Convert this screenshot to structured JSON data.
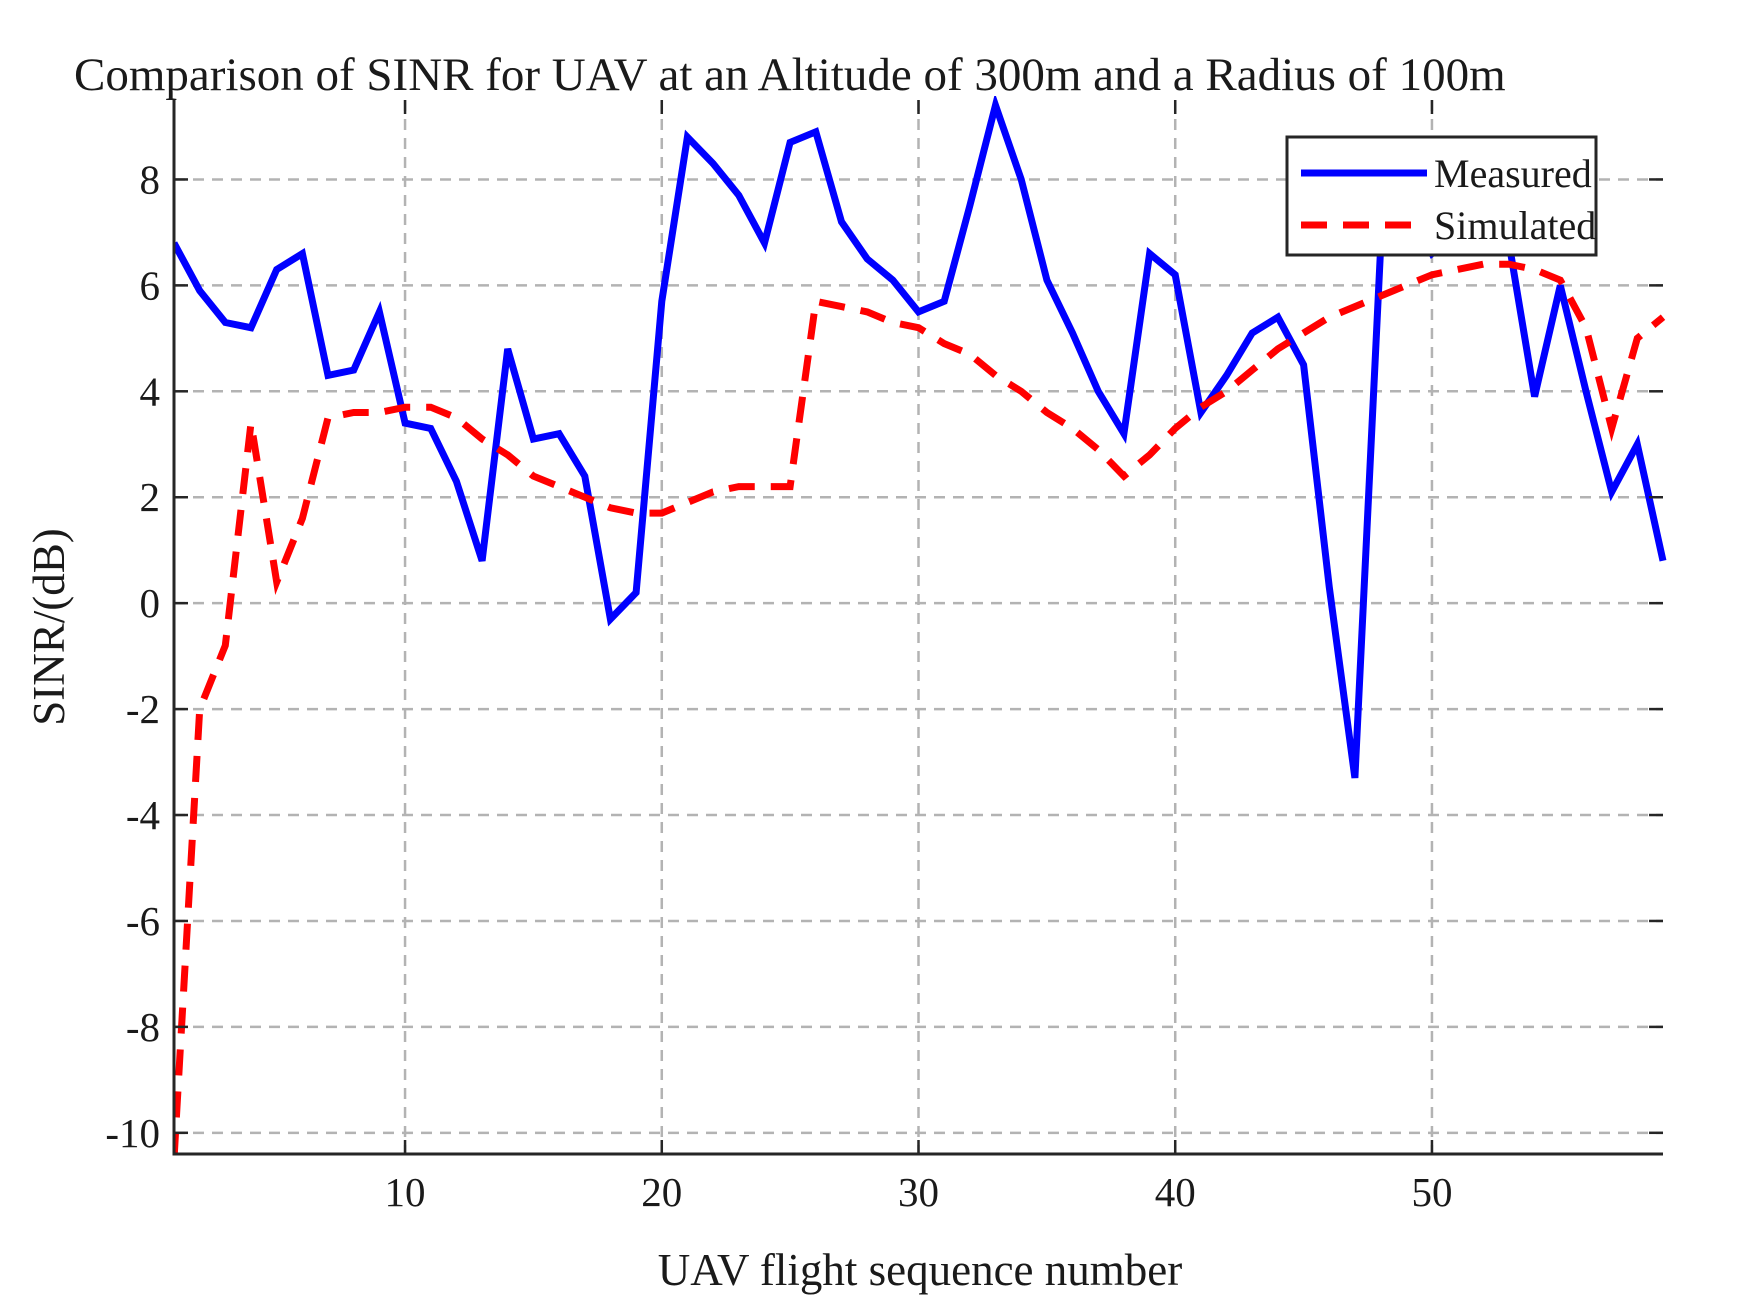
{
  "chart_data": {
    "type": "line",
    "title": "Comparison of SINR for UAV at an Altitude of 300m and a Radius of 100m",
    "xlabel": "UAV flight sequence number",
    "ylabel": "SINR/(dB)",
    "xlim": [
      1,
      59
    ],
    "ylim": [
      -10.4,
      9.5
    ],
    "xticks": [
      10,
      20,
      30,
      40,
      50
    ],
    "yticks": [
      -10,
      -8,
      -6,
      -4,
      -2,
      0,
      2,
      4,
      6,
      8
    ],
    "grid": true,
    "legend": {
      "placement": "top-right"
    },
    "series": [
      {
        "name": "Measured",
        "color": "#0000ff",
        "style": "solid",
        "x": [
          1,
          2,
          3,
          4,
          5,
          6,
          7,
          8,
          9,
          10,
          11,
          12,
          13,
          14,
          15,
          16,
          17,
          18,
          19,
          20,
          21,
          22,
          23,
          24,
          25,
          26,
          27,
          28,
          29,
          30,
          31,
          32,
          33,
          34,
          35,
          36,
          37,
          38,
          39,
          40,
          41,
          42,
          43,
          44,
          45,
          46,
          47,
          48,
          49,
          50,
          51,
          52,
          53,
          54,
          55,
          56,
          57,
          58,
          59
        ],
        "y": [
          6.8,
          5.9,
          5.3,
          5.2,
          6.3,
          6.6,
          4.3,
          4.4,
          5.5,
          3.4,
          3.3,
          2.3,
          0.8,
          4.8,
          3.1,
          3.2,
          2.4,
          -0.3,
          0.2,
          5.7,
          8.8,
          8.3,
          7.7,
          6.8,
          8.7,
          8.9,
          7.2,
          6.5,
          6.1,
          5.5,
          5.7,
          7.5,
          9.4,
          8.0,
          6.1,
          5.1,
          4.0,
          3.2,
          6.6,
          6.2,
          3.6,
          4.3,
          5.1,
          5.4,
          4.5,
          0.3,
          -3.3,
          6.7,
          7.5,
          6.6,
          7.0,
          6.8,
          6.8,
          3.9,
          6.0,
          4.0,
          2.1,
          3.0,
          0.8
        ]
      },
      {
        "name": "Simulated",
        "color": "#ff0000",
        "style": "dashed",
        "x": [
          1,
          2,
          3,
          4,
          5,
          6,
          7,
          8,
          9,
          10,
          11,
          12,
          13,
          14,
          15,
          16,
          17,
          18,
          19,
          20,
          21,
          22,
          23,
          24,
          25,
          26,
          27,
          28,
          29,
          30,
          31,
          32,
          33,
          34,
          35,
          36,
          37,
          38,
          39,
          40,
          41,
          42,
          43,
          44,
          45,
          46,
          47,
          48,
          49,
          50,
          51,
          52,
          53,
          54,
          55,
          56,
          57,
          58,
          59
        ],
        "y": [
          -10.5,
          -2.0,
          -0.8,
          3.4,
          0.4,
          1.6,
          3.5,
          3.6,
          3.6,
          3.7,
          3.7,
          3.5,
          3.1,
          2.8,
          2.4,
          2.2,
          2.0,
          1.8,
          1.7,
          1.7,
          1.9,
          2.1,
          2.2,
          2.2,
          2.2,
          5.7,
          5.6,
          5.5,
          5.3,
          5.2,
          4.9,
          4.7,
          4.3,
          4.0,
          3.6,
          3.3,
          2.9,
          2.4,
          2.8,
          3.3,
          3.7,
          4.0,
          4.4,
          4.8,
          5.1,
          5.4,
          5.6,
          5.8,
          6.0,
          6.2,
          6.3,
          6.4,
          6.4,
          6.3,
          6.1,
          5.2,
          3.3,
          5.0,
          5.4
        ]
      }
    ]
  }
}
